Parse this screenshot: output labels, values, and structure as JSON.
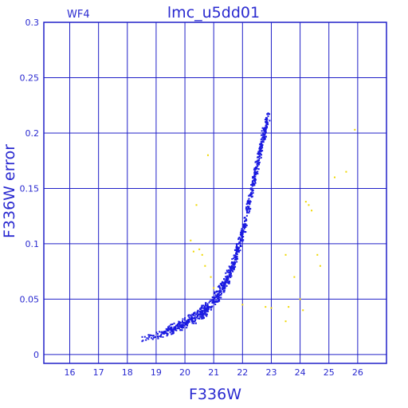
{
  "chart_data": {
    "type": "scatter",
    "title": "lmc_u5dd01",
    "panel_label": "WF4",
    "xlabel": "F336W",
    "ylabel": "F336W error",
    "xlim": [
      15.1,
      27.0
    ],
    "ylim": [
      -0.008,
      0.3
    ],
    "x_ticks": [
      16,
      17,
      18,
      19,
      20,
      21,
      22,
      23,
      24,
      25,
      26
    ],
    "y_ticks": [
      0,
      0.05,
      0.1,
      0.15,
      0.2,
      0.25,
      0.3
    ],
    "grid": true,
    "series": [
      {
        "color": "#1a1ae0",
        "curve": {
          "points": [
            [
              18.4,
              0.013
            ],
            [
              19.0,
              0.017
            ],
            [
              19.5,
              0.022
            ],
            [
              20.0,
              0.028
            ],
            [
              20.4,
              0.034
            ],
            [
              20.8,
              0.042
            ],
            [
              21.1,
              0.052
            ],
            [
              21.4,
              0.065
            ],
            [
              21.7,
              0.082
            ],
            [
              21.9,
              0.1
            ],
            [
              22.1,
              0.12
            ],
            [
              22.3,
              0.145
            ],
            [
              22.5,
              0.17
            ],
            [
              22.7,
              0.195
            ],
            [
              22.9,
              0.212
            ]
          ],
          "n": 900
        }
      },
      {
        "color": "#f0d800",
        "points": [
          [
            20.8,
            0.18
          ],
          [
            20.4,
            0.135
          ],
          [
            20.2,
            0.103
          ],
          [
            20.3,
            0.093
          ],
          [
            20.5,
            0.095
          ],
          [
            20.6,
            0.09
          ],
          [
            20.7,
            0.08
          ],
          [
            20.9,
            0.07
          ],
          [
            21.0,
            0.06
          ],
          [
            22.0,
            0.045
          ],
          [
            22.8,
            0.043
          ],
          [
            23.0,
            0.042
          ],
          [
            23.5,
            0.09
          ],
          [
            23.8,
            0.07
          ],
          [
            24.0,
            0.05
          ],
          [
            24.1,
            0.04
          ],
          [
            23.6,
            0.043
          ],
          [
            23.5,
            0.03
          ],
          [
            24.2,
            0.138
          ],
          [
            24.3,
            0.135
          ],
          [
            24.4,
            0.13
          ],
          [
            24.6,
            0.09
          ],
          [
            24.7,
            0.08
          ],
          [
            25.2,
            0.16
          ],
          [
            25.6,
            0.165
          ],
          [
            25.9,
            0.203
          ]
        ]
      }
    ]
  }
}
